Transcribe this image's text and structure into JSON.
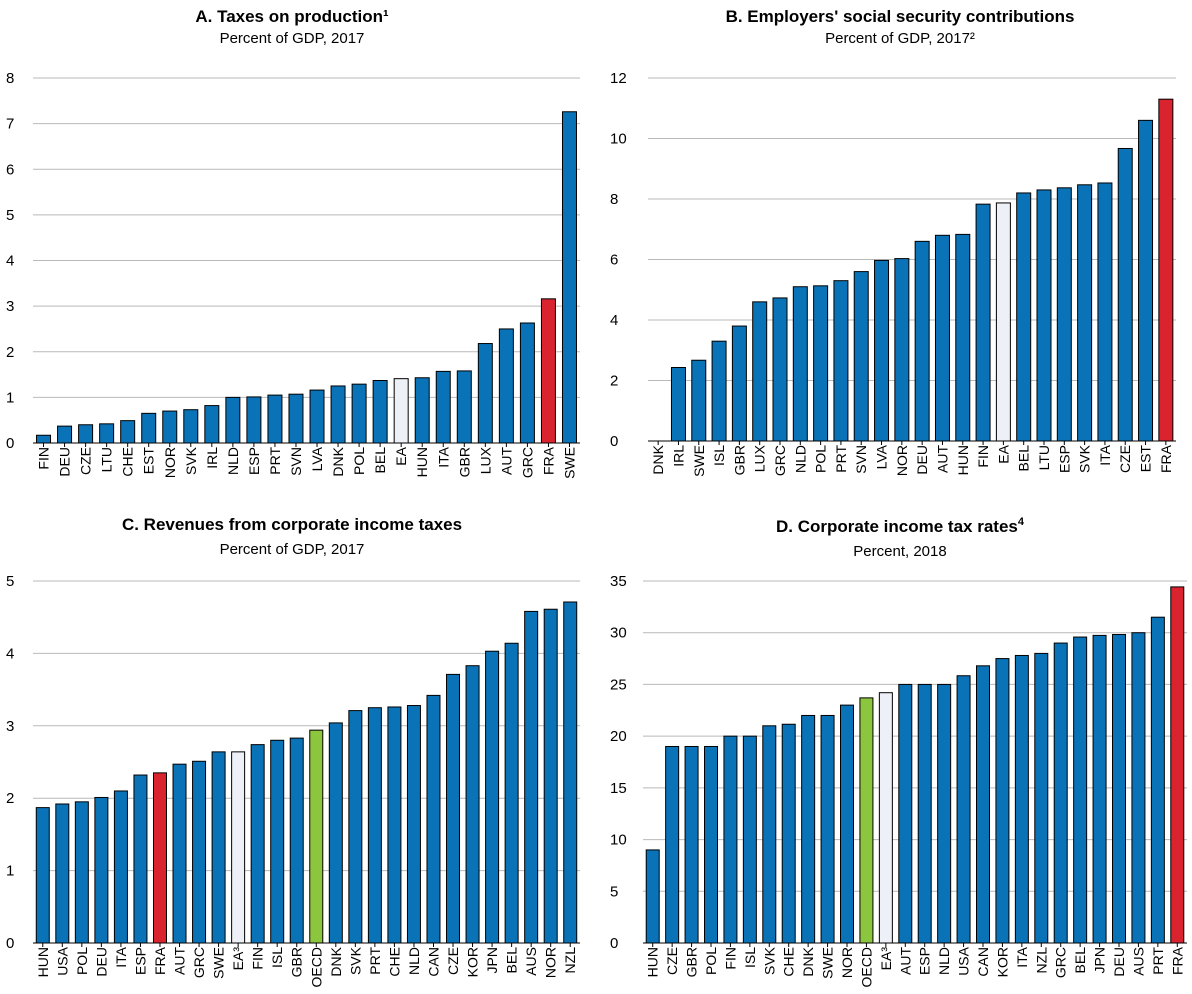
{
  "colors": {
    "bar": "#0a73b8",
    "highlight": "#d9232f",
    "aggregate": "#eef0f8",
    "oecd": "#8cc63f",
    "outline": "#000000",
    "grid": "#b9b9b9"
  },
  "chart_data": [
    {
      "id": "A",
      "type": "bar",
      "title": "A. Taxes on production¹",
      "subtitle": "Percent of GDP, 2017",
      "ylim": [
        0,
        8
      ],
      "yticks": [
        0,
        1,
        2,
        3,
        4,
        5,
        6,
        7,
        8
      ],
      "categories": [
        "FIN",
        "DEU",
        "CZE",
        "LTU",
        "CHE",
        "EST",
        "NOR",
        "SVK",
        "IRL",
        "NLD",
        "ESP",
        "PRT",
        "SVN",
        "LVA",
        "DNK",
        "POL",
        "BEL",
        "EA",
        "HUN",
        "ITA",
        "GBR",
        "LUX",
        "AUT",
        "GRC",
        "FRA",
        "SWE"
      ],
      "values": [
        0.17,
        0.37,
        0.4,
        0.42,
        0.49,
        0.65,
        0.7,
        0.73,
        0.82,
        1.0,
        1.01,
        1.05,
        1.07,
        1.16,
        1.25,
        1.29,
        1.37,
        1.41,
        1.43,
        1.57,
        1.58,
        2.18,
        2.5,
        2.63,
        3.16,
        7.26
      ],
      "highlight": [
        "FRA"
      ],
      "aggregate": [
        "EA"
      ],
      "oecd": []
    },
    {
      "id": "B",
      "type": "bar",
      "title": "B. Employers' social security contributions",
      "subtitle": "Percent of GDP, 2017²",
      "ylim": [
        0,
        12
      ],
      "yticks": [
        0,
        2,
        4,
        6,
        8,
        10,
        12
      ],
      "categories": [
        "DNK",
        "IRL",
        "SWE",
        "ISL",
        "GBR",
        "LUX",
        "GRC",
        "NLD",
        "POL",
        "PRT",
        "SVN",
        "LVA",
        "NOR",
        "DEU",
        "AUT",
        "HUN",
        "FIN",
        "EA",
        "BEL",
        "LTU",
        "ESP",
        "SVK",
        "ITA",
        "CZE",
        "EST",
        "FRA"
      ],
      "values": [
        0.0,
        2.43,
        2.67,
        3.3,
        3.8,
        4.6,
        4.73,
        5.1,
        5.13,
        5.3,
        5.6,
        5.97,
        6.03,
        6.6,
        6.8,
        6.83,
        7.83,
        7.87,
        8.2,
        8.3,
        8.37,
        8.47,
        8.53,
        9.67,
        10.6,
        11.3
      ],
      "highlight": [
        "FRA"
      ],
      "aggregate": [
        "EA"
      ],
      "oecd": []
    },
    {
      "id": "C",
      "type": "bar",
      "title": "C. Revenues from corporate income taxes",
      "subtitle": "Percent of GDP, 2017",
      "ylim": [
        0,
        5
      ],
      "yticks": [
        0,
        1,
        2,
        3,
        4,
        5
      ],
      "categories": [
        "HUN",
        "USA",
        "POL",
        "DEU",
        "ITA",
        "ESP",
        "FRA",
        "AUT",
        "GRC",
        "SWE",
        "EA³",
        "FIN",
        "ISL",
        "GBR",
        "OECD",
        "DNK",
        "SVK",
        "PRT",
        "CHE",
        "NLD",
        "CAN",
        "CZE",
        "KOR",
        "JPN",
        "BEL",
        "AUS",
        "NOR",
        "NZL"
      ],
      "values": [
        1.87,
        1.92,
        1.95,
        2.01,
        2.1,
        2.32,
        2.35,
        2.47,
        2.51,
        2.64,
        2.64,
        2.74,
        2.8,
        2.83,
        2.94,
        3.04,
        3.21,
        3.25,
        3.26,
        3.28,
        3.42,
        3.71,
        3.83,
        4.03,
        4.14,
        4.58,
        4.61,
        4.71
      ],
      "highlight": [
        "FRA"
      ],
      "aggregate": [
        "EA³"
      ],
      "oecd": [
        "OECD"
      ]
    },
    {
      "id": "D",
      "type": "bar",
      "title": "D. Corporate income tax rates",
      "title_sup": "4",
      "subtitle": "Percent, 2018",
      "ylim": [
        0,
        35
      ],
      "yticks": [
        0,
        5,
        10,
        15,
        20,
        25,
        30,
        35
      ],
      "categories": [
        "HUN",
        "CZE",
        "GBR",
        "POL",
        "FIN",
        "ISL",
        "SVK",
        "CHE",
        "DNK",
        "SWE",
        "NOR",
        "OECD",
        "EA³",
        "AUT",
        "ESP",
        "NLD",
        "USA",
        "CAN",
        "KOR",
        "ITA",
        "NZL",
        "GRC",
        "BEL",
        "JPN",
        "DEU",
        "AUS",
        "PRT",
        "FRA"
      ],
      "values": [
        9.0,
        19.0,
        19.0,
        19.0,
        20.0,
        20.0,
        21.0,
        21.15,
        22.0,
        22.0,
        23.0,
        23.7,
        24.2,
        25.0,
        25.0,
        25.0,
        25.84,
        26.8,
        27.5,
        27.8,
        28.0,
        29.0,
        29.58,
        29.74,
        29.83,
        30.0,
        31.5,
        34.43
      ],
      "highlight": [
        "FRA"
      ],
      "aggregate": [
        "EA³"
      ],
      "oecd": [
        "OECD"
      ]
    }
  ]
}
